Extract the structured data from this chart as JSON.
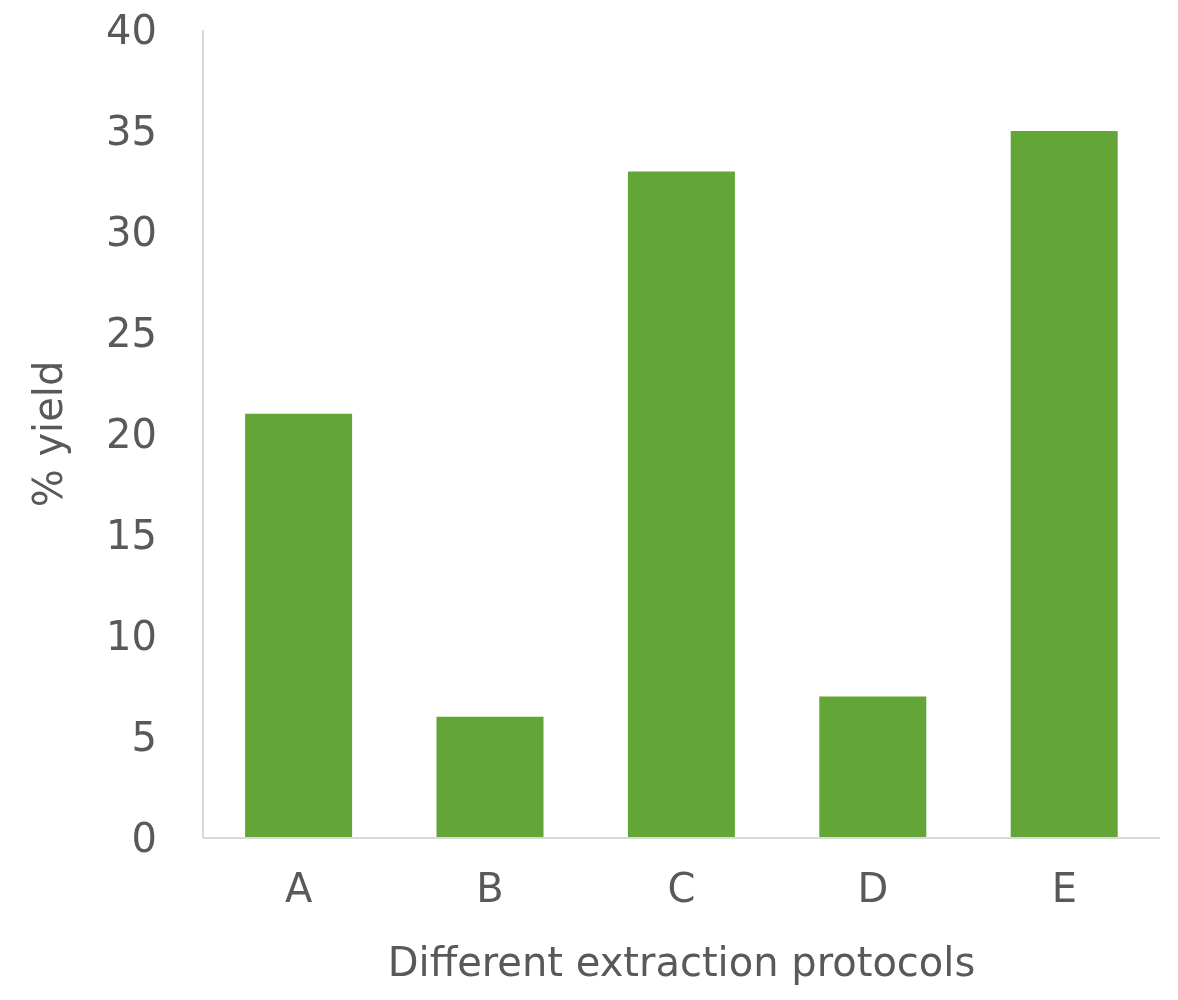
{
  "chart_data": {
    "type": "bar",
    "xlabel": "Different extraction protocols",
    "ylabel": "% yield",
    "categories": [
      "A",
      "B",
      "C",
      "D",
      "E"
    ],
    "values": [
      21,
      6,
      33,
      7,
      35
    ],
    "color": "#63a537",
    "ylim": [
      0,
      40
    ],
    "yticks": [
      0,
      5,
      10,
      15,
      20,
      25,
      30,
      35,
      40
    ],
    "grid": false,
    "legend": false
  }
}
